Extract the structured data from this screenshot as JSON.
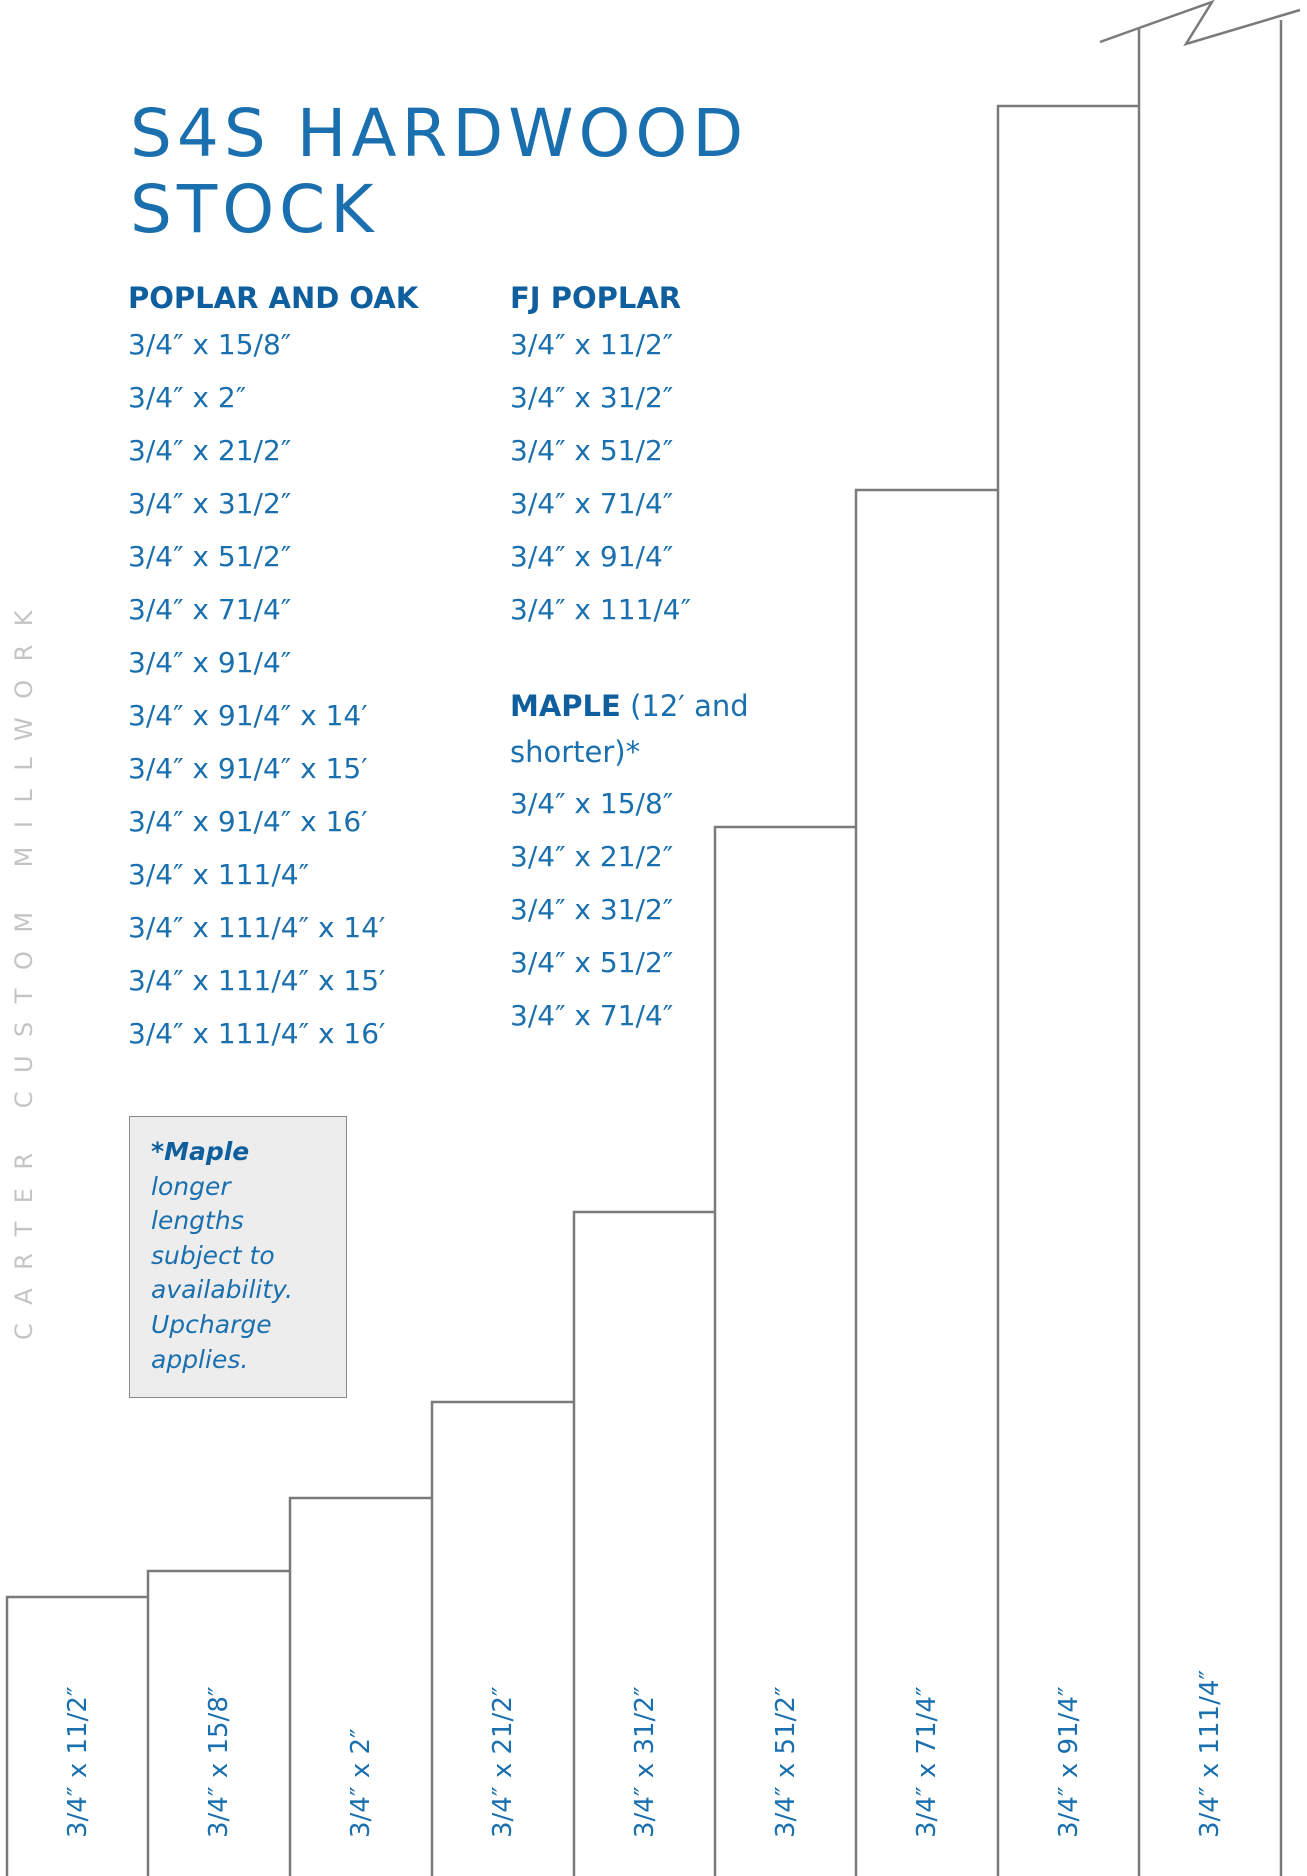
{
  "title": {
    "line1": "S4S HARDWOOD",
    "line2": "STOCK"
  },
  "brand": "CARTER CUSTOM MILLWORK",
  "poplar_oak": {
    "heading": "POPLAR AND OAK",
    "sizes": [
      "3/4″ x 15/8″",
      "3/4″ x 2″",
      "3/4″ x 21/2″",
      "3/4″ x 31/2″",
      "3/4″ x 51/2″",
      "3/4″ x 71/4″",
      "3/4″ x 91/4″",
      "3/4″ x 91/4″ x 14′",
      "3/4″ x 91/4″ x 15′",
      "3/4″ x 91/4″ x 16′",
      "3/4″ x 111/4″",
      "3/4″ x 111/4″ x 14′",
      "3/4″ x 111/4″ x 15′",
      "3/4″ x 111/4″ x 16′"
    ]
  },
  "fj_poplar": {
    "heading": "FJ POPLAR",
    "sizes": [
      "3/4″ x 11/2″",
      "3/4″ x 31/2″",
      "3/4″ x 51/2″",
      "3/4″ x 71/4″",
      "3/4″ x 91/4″",
      "3/4″ x 111/4″"
    ]
  },
  "maple": {
    "heading_bold": "MAPLE",
    "heading_line1": "(12′ and",
    "heading_line2": "shorter)*",
    "sizes": [
      "3/4″ x 15/8″",
      "3/4″ x 21/2″",
      "3/4″ x 31/2″",
      "3/4″ x 51/2″",
      "3/4″ x 71/4″"
    ]
  },
  "note": {
    "lead": "*Maple",
    "lines": [
      "longer",
      "lengths",
      "subject to",
      "availability.",
      "Upcharge",
      "applies."
    ]
  },
  "boards": [
    "3/4″ x 11/2″",
    "3/4″ x 15/8″",
    "3/4″ x 2″",
    "3/4″ x 21/2″",
    "3/4″ x 31/2″",
    "3/4″ x 51/2″",
    "3/4″ x 71/4″",
    "3/4″ x 91/4″",
    "3/4″ x 111/4″"
  ],
  "colors": {
    "accent": "#1a6fae",
    "heading": "#0f5f9f",
    "outline": "#7a7a7a",
    "note_bg": "#ededed",
    "brand_text": "#c4c4c4"
  }
}
